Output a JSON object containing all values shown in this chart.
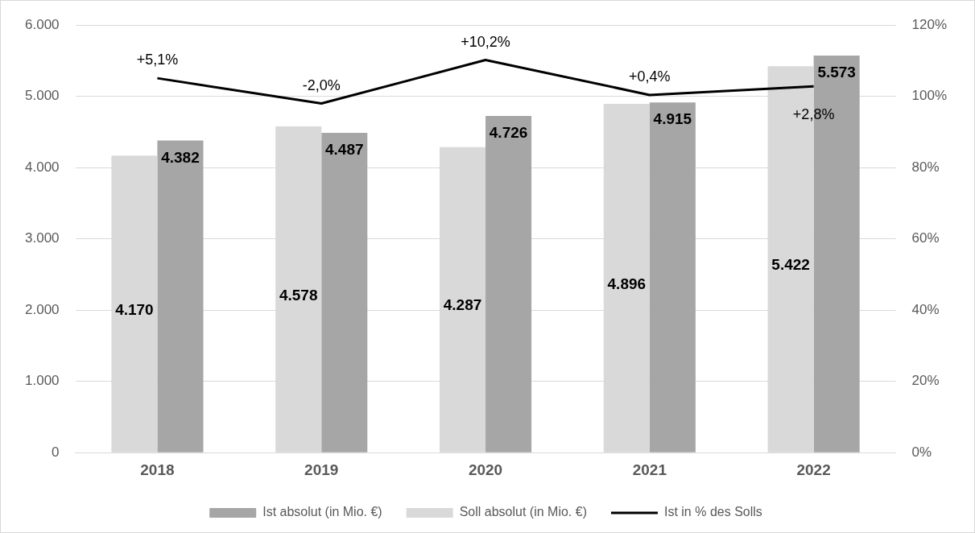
{
  "chart_data": {
    "type": "bar",
    "categories": [
      "2018",
      "2019",
      "2020",
      "2021",
      "2022"
    ],
    "series": [
      {
        "name": "Soll absolut (in Mio. €)",
        "color": "#d9d9d9",
        "values": [
          4170,
          4578,
          4287,
          4896,
          5422
        ],
        "value_labels": [
          "4.170",
          "4.578",
          "4.287",
          "4.896",
          "5.422"
        ]
      },
      {
        "name": "Ist absolut (in Mio. €)",
        "color": "#a6a6a6",
        "values": [
          4382,
          4487,
          4726,
          4915,
          5573
        ],
        "value_labels": [
          "4.382",
          "4.487",
          "4.726",
          "4.915",
          "5.573"
        ]
      },
      {
        "name": "Ist in % des Solls",
        "type": "line",
        "axis": "y2",
        "color": "#000000",
        "values": [
          105.1,
          98.0,
          110.2,
          100.4,
          102.8
        ]
      }
    ],
    "annotations": [
      "+5,1%",
      "-2,0%",
      "+10,2%",
      "+0,4%",
      "+2,8%"
    ],
    "ylim": [
      0,
      6000
    ],
    "yticks": [
      {
        "value": 0,
        "label": "0"
      },
      {
        "value": 1000,
        "label": "1.000"
      },
      {
        "value": 2000,
        "label": "2.000"
      },
      {
        "value": 3000,
        "label": "3.000"
      },
      {
        "value": 4000,
        "label": "4.000"
      },
      {
        "value": 5000,
        "label": "5.000"
      },
      {
        "value": 6000,
        "label": "6.000"
      }
    ],
    "y2lim": [
      0,
      120
    ],
    "y2ticks": [
      {
        "value": 0,
        "label": "0%"
      },
      {
        "value": 20,
        "label": "20%"
      },
      {
        "value": 40,
        "label": "40%"
      },
      {
        "value": 60,
        "label": "60%"
      },
      {
        "value": 80,
        "label": "80%"
      },
      {
        "value": 100,
        "label": "100%"
      },
      {
        "value": 120,
        "label": "120%"
      }
    ],
    "grid": "y",
    "legend": "bottom",
    "marker": "none",
    "line_style": "solid"
  }
}
